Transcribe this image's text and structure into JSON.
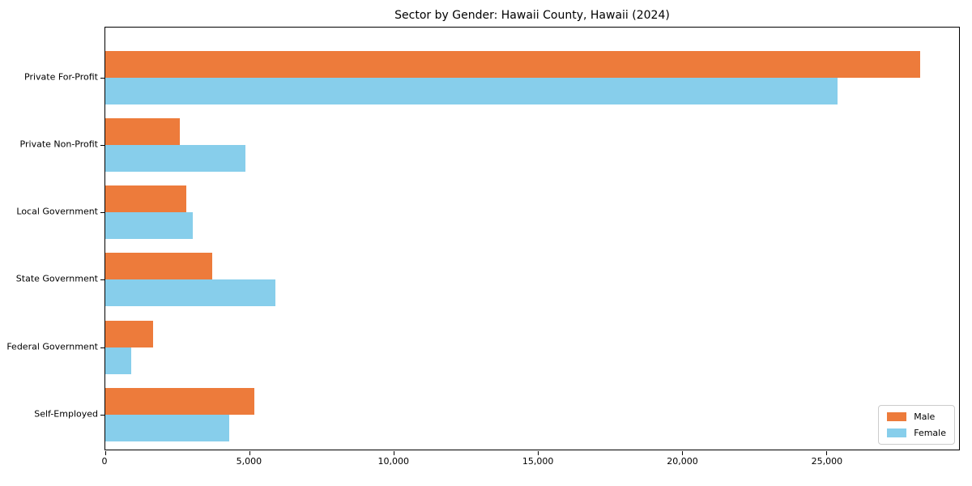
{
  "title": "Sector by Gender: Hawaii County, Hawaii (2024)",
  "colors": {
    "male": "#ED7B3B",
    "female": "#87CEEB",
    "spine": "#000000",
    "text": "#000000",
    "legend_border": "#cccccc",
    "background": "#ffffff"
  },
  "chart_data": {
    "type": "bar",
    "orientation": "horizontal",
    "title": "Sector by Gender: Hawaii County, Hawaii (2024)",
    "categories": [
      "Private For-Profit",
      "Private Non-Profit",
      "Local Government",
      "State Government",
      "Federal Government",
      "Self-Employed"
    ],
    "series": [
      {
        "name": "Male",
        "color": "#ED7B3B",
        "values": [
          28250,
          2580,
          2810,
          3700,
          1650,
          5170
        ]
      },
      {
        "name": "Female",
        "color": "#87CEEB",
        "values": [
          25400,
          4850,
          3040,
          5890,
          890,
          4290
        ]
      }
    ],
    "xlabel": "",
    "ylabel": "",
    "xlim": [
      0,
      29600
    ],
    "x_ticks": [
      0,
      5000,
      10000,
      15000,
      20000,
      25000
    ],
    "x_tick_labels": [
      "0",
      "5,000",
      "10,000",
      "15,000",
      "20,000",
      "25,000"
    ],
    "grid": false,
    "legend_position": "lower right",
    "legend_entries": [
      "Male",
      "Female"
    ]
  }
}
